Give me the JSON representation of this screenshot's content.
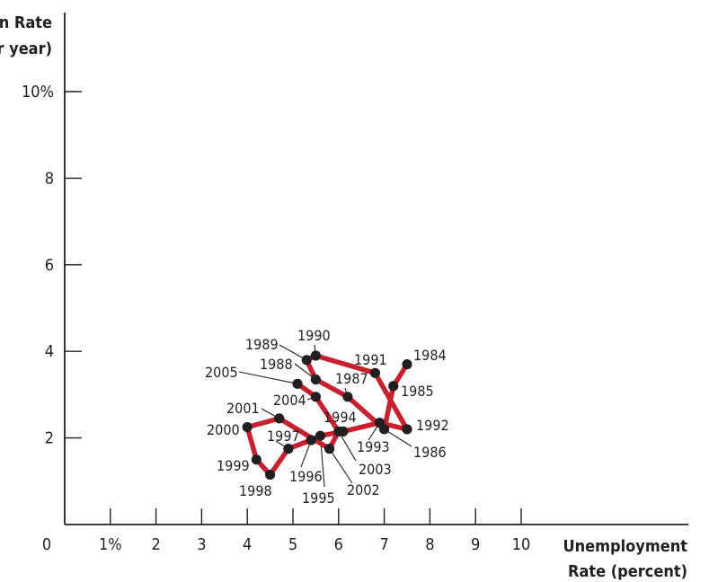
{
  "chart_data": {
    "type": "line",
    "title": "",
    "ylabel_lines": [
      "on Rate",
      "r year)"
    ],
    "xlabel_lines": [
      "Unemployment",
      "Rate (percent)"
    ],
    "xlim": [
      0,
      14
    ],
    "ylim": [
      0,
      12
    ],
    "x_ticks": [
      {
        "value": 1,
        "label": "1%"
      },
      {
        "value": 2,
        "label": "2"
      },
      {
        "value": 3,
        "label": "3"
      },
      {
        "value": 4,
        "label": "4"
      },
      {
        "value": 5,
        "label": "5"
      },
      {
        "value": 6,
        "label": "6"
      },
      {
        "value": 7,
        "label": "7"
      },
      {
        "value": 8,
        "label": "8"
      },
      {
        "value": 9,
        "label": "9"
      },
      {
        "value": 10,
        "label": "10"
      }
    ],
    "y_ticks": [
      {
        "value": 2,
        "label": "2"
      },
      {
        "value": 4,
        "label": "4"
      },
      {
        "value": 6,
        "label": "6"
      },
      {
        "value": 8,
        "label": "8"
      },
      {
        "value": 10,
        "label": "10%"
      }
    ],
    "origin_label": "0",
    "line_color": "#c8202f",
    "point_color": "#231f20",
    "grid": false,
    "series": [
      {
        "points": [
          {
            "year": "1984",
            "x": 7.5,
            "y": 3.7
          },
          {
            "year": "1985",
            "x": 7.2,
            "y": 3.2
          },
          {
            "year": "1986",
            "x": 7.0,
            "y": 2.2
          },
          {
            "year": "1987",
            "x": 6.2,
            "y": 2.95
          },
          {
            "year": "1988",
            "x": 5.5,
            "y": 3.35
          },
          {
            "year": "1989",
            "x": 5.3,
            "y": 3.8
          },
          {
            "year": "1990",
            "x": 5.5,
            "y": 3.9
          },
          {
            "year": "1991",
            "x": 6.8,
            "y": 3.5
          },
          {
            "year": "1992",
            "x": 7.5,
            "y": 2.2
          },
          {
            "year": "1993",
            "x": 6.9,
            "y": 2.35
          },
          {
            "year": "1994",
            "x": 6.1,
            "y": 2.15
          },
          {
            "year": "1995",
            "x": 5.6,
            "y": 2.05
          },
          {
            "year": "1996",
            "x": 5.4,
            "y": 1.95
          },
          {
            "year": "1997",
            "x": 4.9,
            "y": 1.75
          },
          {
            "year": "1998",
            "x": 4.5,
            "y": 1.15
          },
          {
            "year": "1999",
            "x": 4.2,
            "y": 1.5
          },
          {
            "year": "2000",
            "x": 4.0,
            "y": 2.25
          },
          {
            "year": "2001",
            "x": 4.7,
            "y": 2.45
          },
          {
            "year": "2002",
            "x": 5.8,
            "y": 1.75
          },
          {
            "year": "2003",
            "x": 6.0,
            "y": 2.15
          },
          {
            "year": "2004",
            "x": 5.5,
            "y": 2.95
          },
          {
            "year": "2005",
            "x": 5.1,
            "y": 3.25
          }
        ]
      }
    ]
  }
}
